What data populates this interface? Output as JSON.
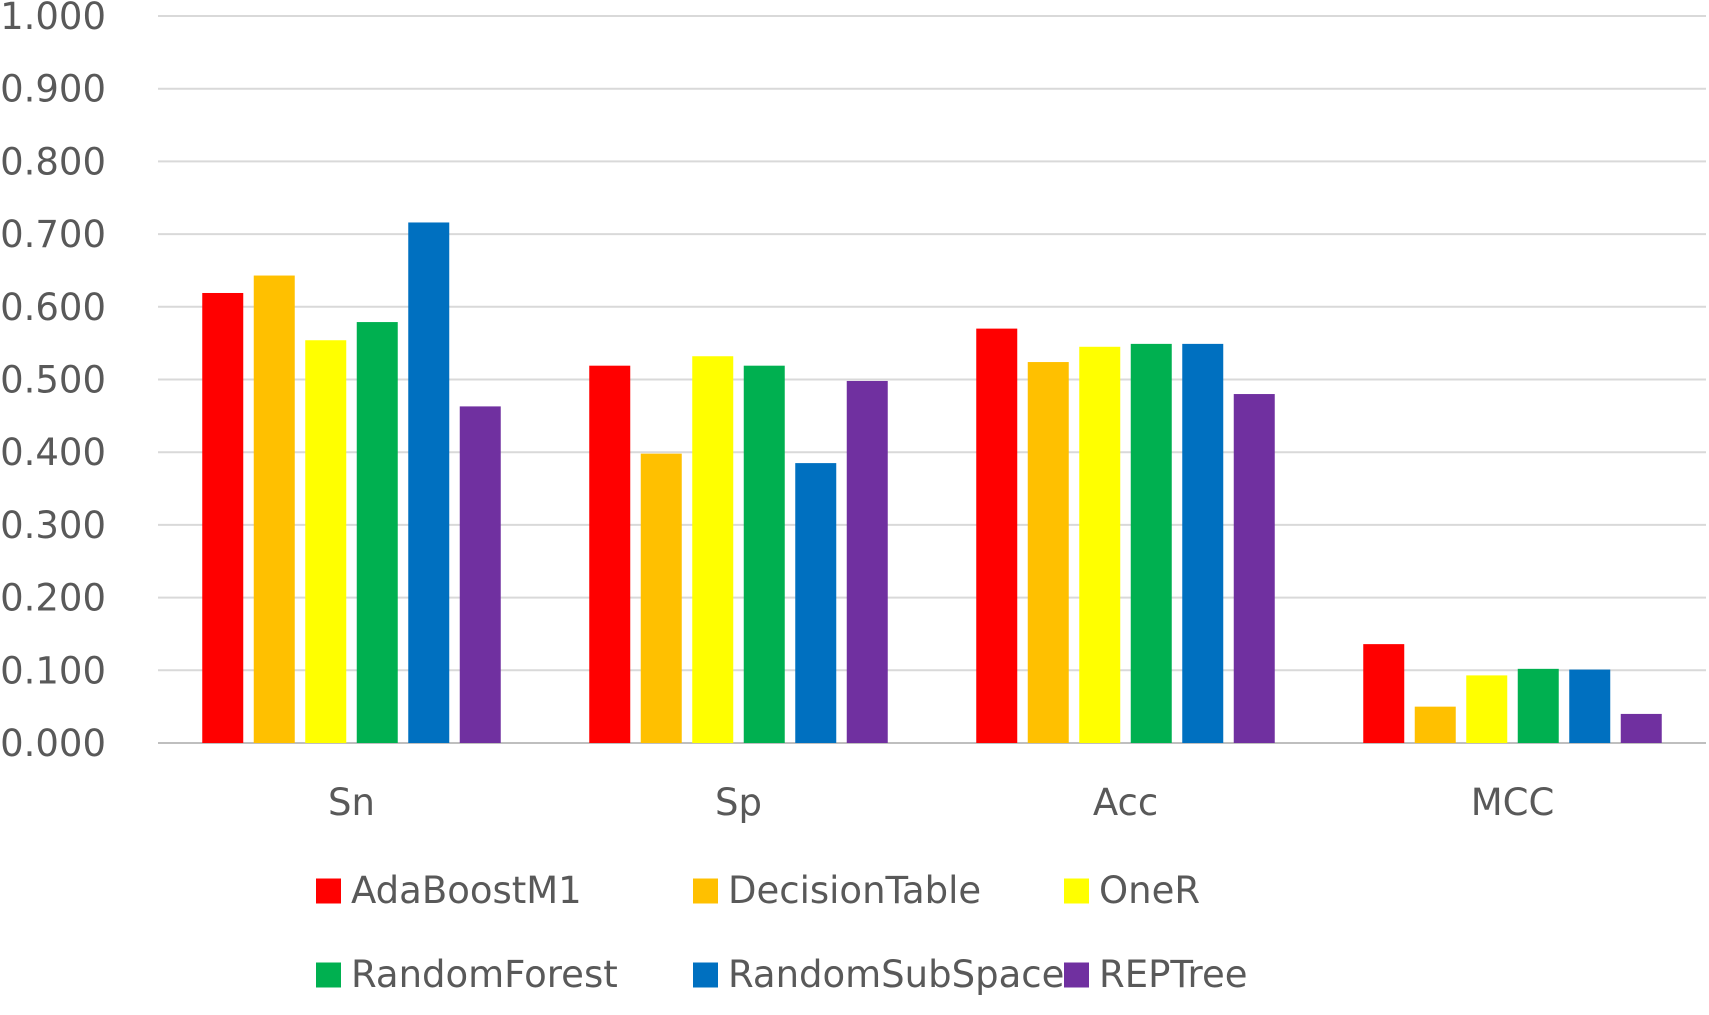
{
  "chart_data": {
    "type": "bar",
    "title": "",
    "xlabel": "",
    "ylabel": "",
    "ylim": [
      0,
      1
    ],
    "ytick_labels": [
      "0.000",
      "0.100",
      "0.200",
      "0.300",
      "0.400",
      "0.500",
      "0.600",
      "0.700",
      "0.800",
      "0.900",
      "1.000"
    ],
    "ytick_values": [
      0,
      0.1,
      0.2,
      0.3,
      0.4,
      0.5,
      0.6,
      0.7,
      0.8,
      0.9,
      1.0
    ],
    "grid": true,
    "legend_position": "bottom",
    "categories": [
      "Sn",
      "Sp",
      "Acc",
      "MCC"
    ],
    "series": [
      {
        "name": "AdaBoostM1",
        "color": "#ff0000",
        "values": [
          0.619,
          0.519,
          0.57,
          0.136
        ]
      },
      {
        "name": "DecisionTable",
        "color": "#ffc000",
        "values": [
          0.643,
          0.398,
          0.524,
          0.05
        ]
      },
      {
        "name": "OneR",
        "color": "#ffff00",
        "values": [
          0.554,
          0.532,
          0.545,
          0.093
        ]
      },
      {
        "name": "RandomForest",
        "color": "#00b050",
        "values": [
          0.579,
          0.519,
          0.549,
          0.102
        ]
      },
      {
        "name": "RandomSubSpace",
        "color": "#0070c0",
        "values": [
          0.716,
          0.385,
          0.549,
          0.101
        ]
      },
      {
        "name": "REPTree",
        "color": "#7030a0",
        "values": [
          0.463,
          0.498,
          0.48,
          0.04
        ]
      }
    ]
  }
}
